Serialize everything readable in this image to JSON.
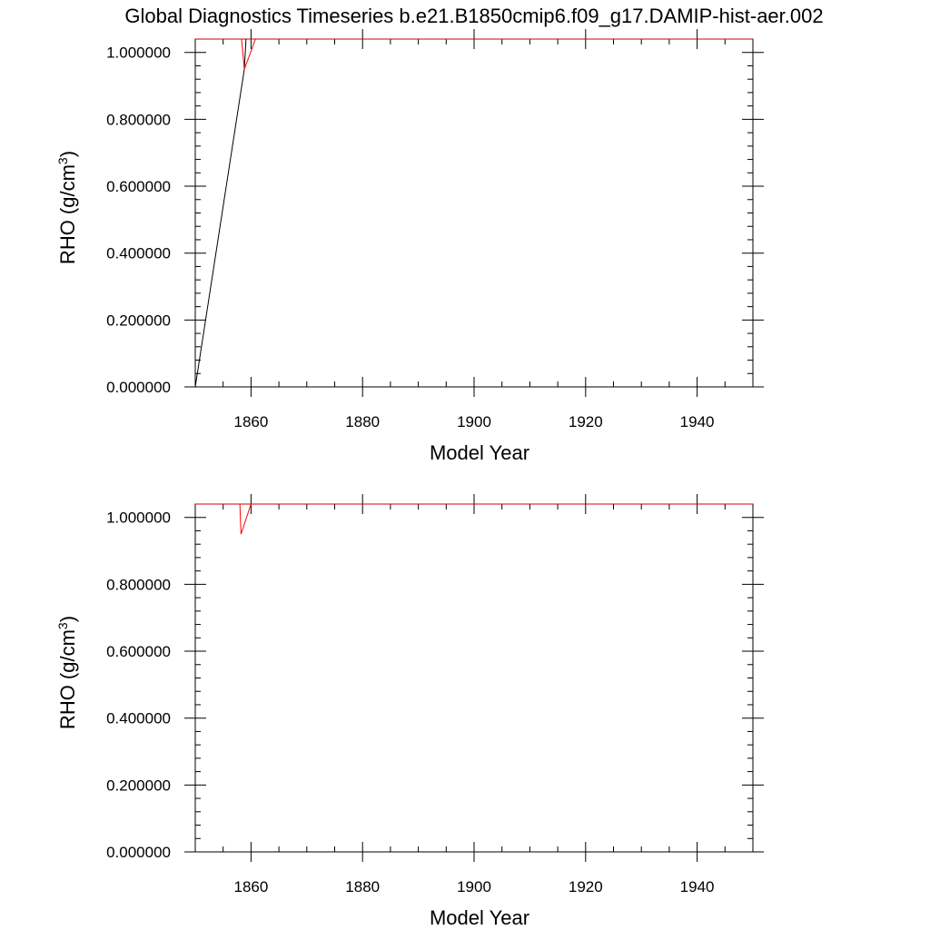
{
  "title": "Global Diagnostics Timeseries b.e21.B1850cmip6.f09_g17.DAMIP-hist-aer.002",
  "colors": {
    "series_black": "#000000",
    "series_red": "#ff0000",
    "top_border": "#cc0000"
  },
  "chart_data": [
    {
      "type": "line",
      "xlabel": "Model Year",
      "ylabel": "RHO (g/cm",
      "ylabel_sup": "3",
      "ylabel_close": ")",
      "xlim": [
        1850,
        1950
      ],
      "ylim": [
        0,
        1.04
      ],
      "xticks": [
        1860,
        1880,
        1900,
        1920,
        1940
      ],
      "xtick_labels": [
        "1860",
        "1880",
        "1900",
        "1920",
        "1940"
      ],
      "yticks": [
        0,
        0.2,
        0.4,
        0.6,
        0.8,
        1.0
      ],
      "ytick_labels": [
        "0.000000",
        "0.200000",
        "0.400000",
        "0.600000",
        "0.800000",
        "1.000000"
      ],
      "grid": false,
      "series": [
        {
          "color": "#000000",
          "x": [
            1850,
            1858.8,
            1859.1
          ],
          "y": [
            0,
            0.95,
            1.04
          ]
        },
        {
          "color": "#ff0000",
          "x": [
            1858.3,
            1858.8,
            1860.8
          ],
          "y": [
            1.04,
            0.95,
            1.04
          ]
        }
      ]
    },
    {
      "type": "line",
      "xlabel": "Model Year",
      "ylabel": "RHO (g/cm",
      "ylabel_sup": "3",
      "ylabel_close": ")",
      "xlim": [
        1850,
        1950
      ],
      "ylim": [
        0,
        1.04
      ],
      "xticks": [
        1860,
        1880,
        1900,
        1920,
        1940
      ],
      "xtick_labels": [
        "1860",
        "1880",
        "1900",
        "1920",
        "1940"
      ],
      "yticks": [
        0,
        0.2,
        0.4,
        0.6,
        0.8,
        1.0
      ],
      "ytick_labels": [
        "0.000000",
        "0.200000",
        "0.400000",
        "0.600000",
        "0.800000",
        "1.000000"
      ],
      "grid": false,
      "series": [
        {
          "color": "#ff0000",
          "x": [
            1858.0,
            1858.2,
            1860.0
          ],
          "y": [
            1.04,
            0.95,
            1.04
          ]
        }
      ]
    }
  ]
}
